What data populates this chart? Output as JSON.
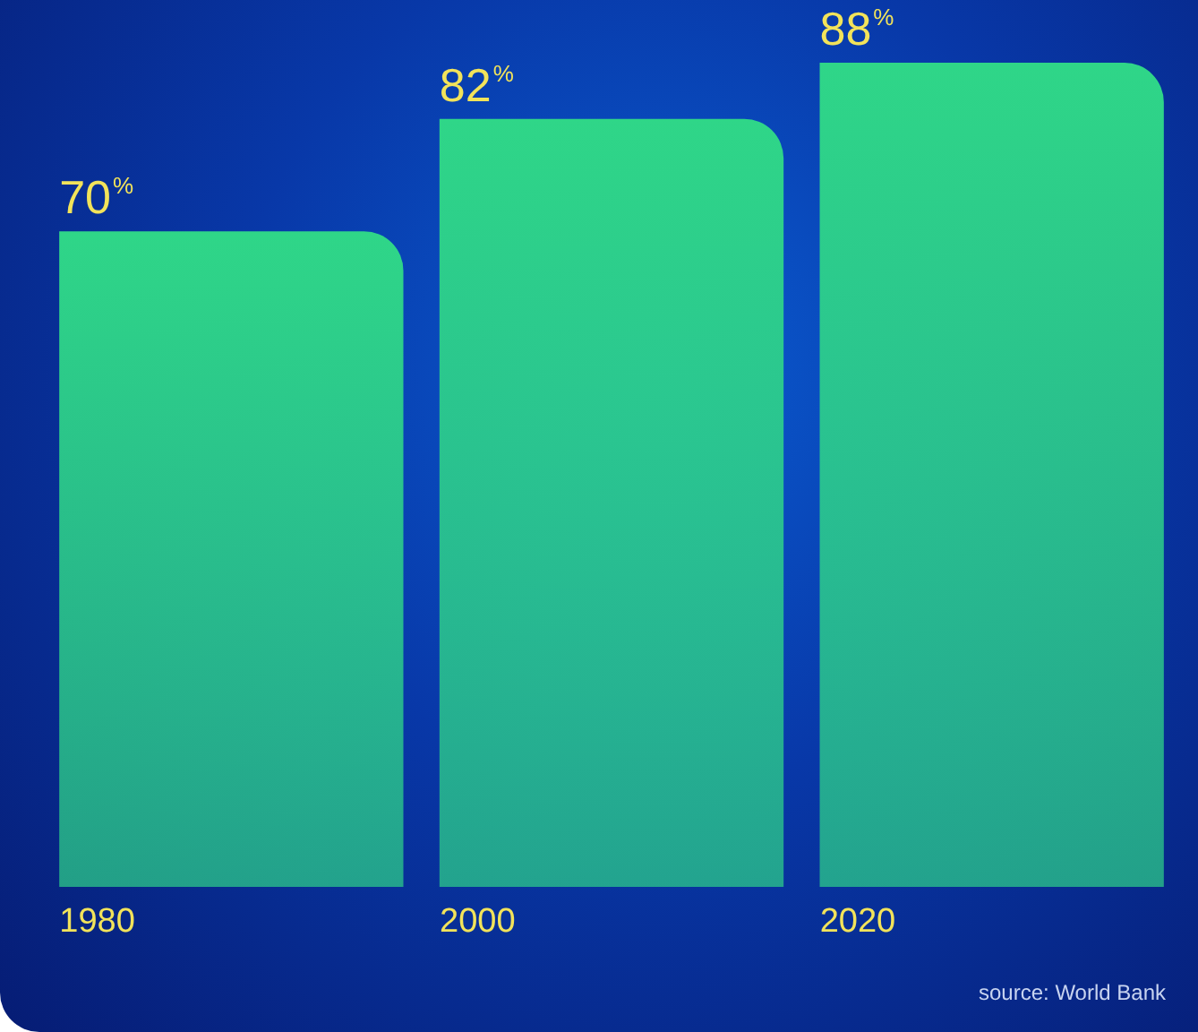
{
  "chart_data": {
    "type": "bar",
    "categories": [
      "1980",
      "2000",
      "2020"
    ],
    "values": [
      70,
      82,
      88
    ],
    "value_labels": [
      "70%",
      "82%",
      "88%"
    ],
    "color": "#2fd688",
    "grid": false,
    "annotations": [
      "source: World Bank"
    ]
  }
}
